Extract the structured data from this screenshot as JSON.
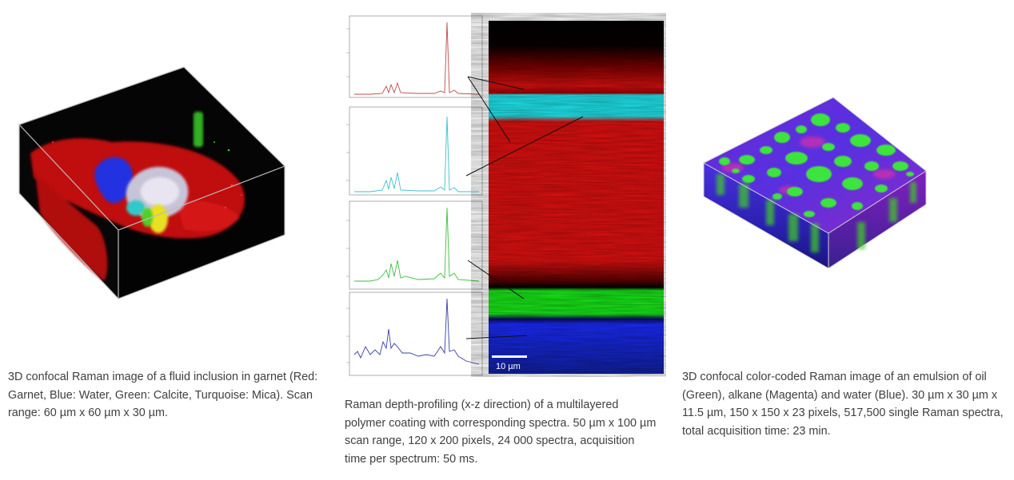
{
  "figures": [
    {
      "caption": "3D confocal Raman image of a fluid inclusion in garnet (Red: Garnet, Blue: Water, Green: Calcite, Turquoise: Mica). Scan range: 60 µm x 60 µm x 30 µm."
    },
    {
      "caption": "Raman depth-profiling (x-z direction) of a multilayered polymer coating with corresponding spectra. 50 µm x 100 µm scan range, 120 x 200 pixels, 24 000 spectra, acquisition time per spectrum: 50 ms.",
      "scale_bar_label": "10 µm",
      "spectra_colors": [
        "#c04a4a",
        "#3fbfd0",
        "#3fbf3f",
        "#3a3fa8"
      ],
      "layer_colors": {
        "red": "#e0100f",
        "cyan": "#1fe6ee",
        "green": "#18e818",
        "blue": "#1a2cff"
      }
    },
    {
      "caption": "3D confocal color-coded Raman image of an emulsion of oil (Green), alkane (Magenta) and water (Blue). 30 µm x 30 µm x 11.5 µm, 150 x 150 x 23 pixels, 517,500 single Raman spectra, total acquisition time: 23 min."
    }
  ]
}
